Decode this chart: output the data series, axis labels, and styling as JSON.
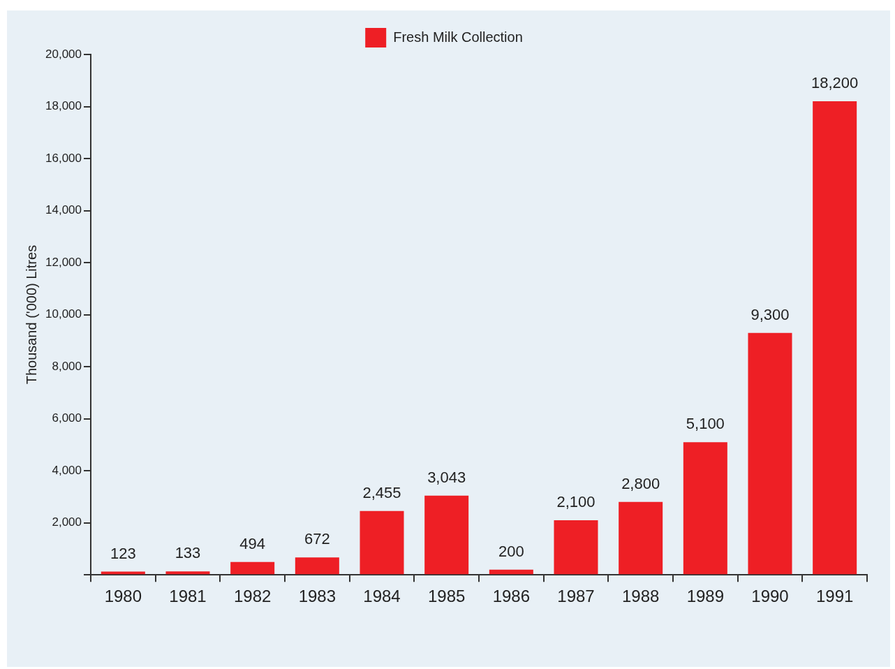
{
  "chart_data": {
    "type": "bar",
    "ylabel": "Thousand ('000) Litres",
    "categories": [
      "1980",
      "1981",
      "1982",
      "1983",
      "1984",
      "1985",
      "1986",
      "1987",
      "1988",
      "1989",
      "1990",
      "1991"
    ],
    "series": [
      {
        "name": "Fresh Milk Collection",
        "color": "#ee1f25",
        "values": [
          123,
          133,
          494,
          672,
          2455,
          3043,
          200,
          2100,
          2800,
          5100,
          9300,
          18200
        ],
        "value_labels": [
          "123",
          "133",
          "494",
          "672",
          "2,455",
          "3,043",
          "200",
          "2,100",
          "2,800",
          "5,100",
          "9,300",
          "18,200"
        ]
      }
    ],
    "ylim": [
      0,
      20000
    ],
    "yticks": [
      {
        "value": 0,
        "label": null
      },
      {
        "value": 2000,
        "label": "2,000"
      },
      {
        "value": 4000,
        "label": "4,000"
      },
      {
        "value": 6000,
        "label": "6,000"
      },
      {
        "value": 8000,
        "label": "8,000"
      },
      {
        "value": 10000,
        "label": "10,000"
      },
      {
        "value": 12000,
        "label": "12,000"
      },
      {
        "value": 14000,
        "label": "14,000"
      },
      {
        "value": 16000,
        "label": "16,000"
      },
      {
        "value": 18000,
        "label": "18,000"
      },
      {
        "value": 20000,
        "label": "20,000"
      }
    ],
    "grid": false,
    "legend": "top"
  }
}
